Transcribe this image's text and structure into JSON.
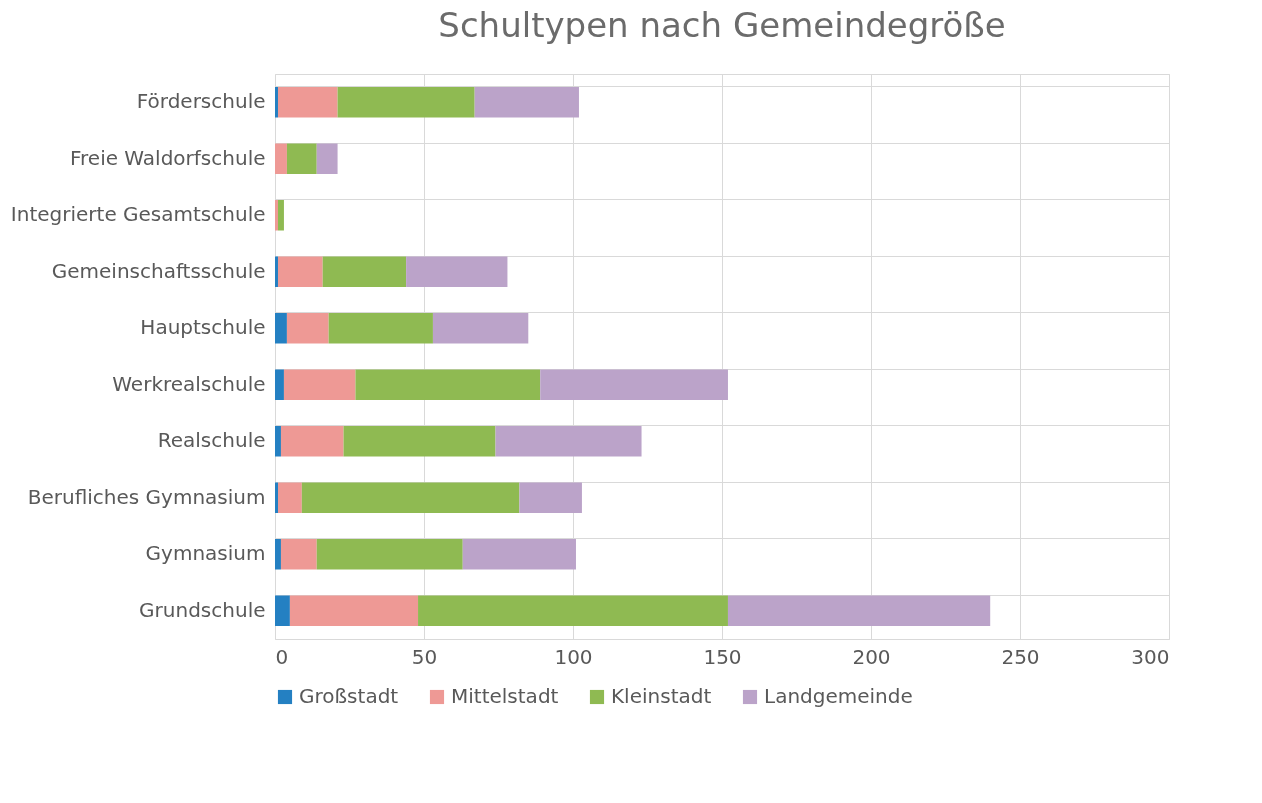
{
  "chart_data": {
    "type": "bar",
    "title": "Schultypen nach Gemeindegröße",
    "orientation": "horizontal",
    "stacked": true,
    "categories": [
      "Förderschule",
      "Freie Waldorfschule",
      "Integrierte Gesamtschule",
      "Gemeinschaftsschule",
      "Hauptschule",
      "Werkrealschule",
      "Realschule",
      "Berufliches Gymnasium",
      "Gymnasium",
      "Grundschule"
    ],
    "series": [
      {
        "name": "Großstadt",
        "color": "#2480c2",
        "values": [
          1,
          0,
          0,
          1,
          4,
          3,
          2,
          1,
          2,
          5
        ]
      },
      {
        "name": "Mittelstadt",
        "color": "#ee9995",
        "values": [
          20,
          4,
          1,
          15,
          14,
          24,
          21,
          8,
          12,
          43
        ]
      },
      {
        "name": "Kleinstadt",
        "color": "#8fba52",
        "values": [
          46,
          10,
          2,
          28,
          35,
          62,
          51,
          73,
          49,
          104
        ]
      },
      {
        "name": "Landgemeinde",
        "color": "#bba3c9",
        "values": [
          35,
          7,
          0,
          34,
          32,
          63,
          49,
          21,
          38,
          88
        ]
      }
    ],
    "xlim": [
      0,
      300
    ],
    "xticks": [
      0,
      50,
      100,
      150,
      200,
      250,
      300
    ],
    "grid": true,
    "legend": "bottom"
  }
}
